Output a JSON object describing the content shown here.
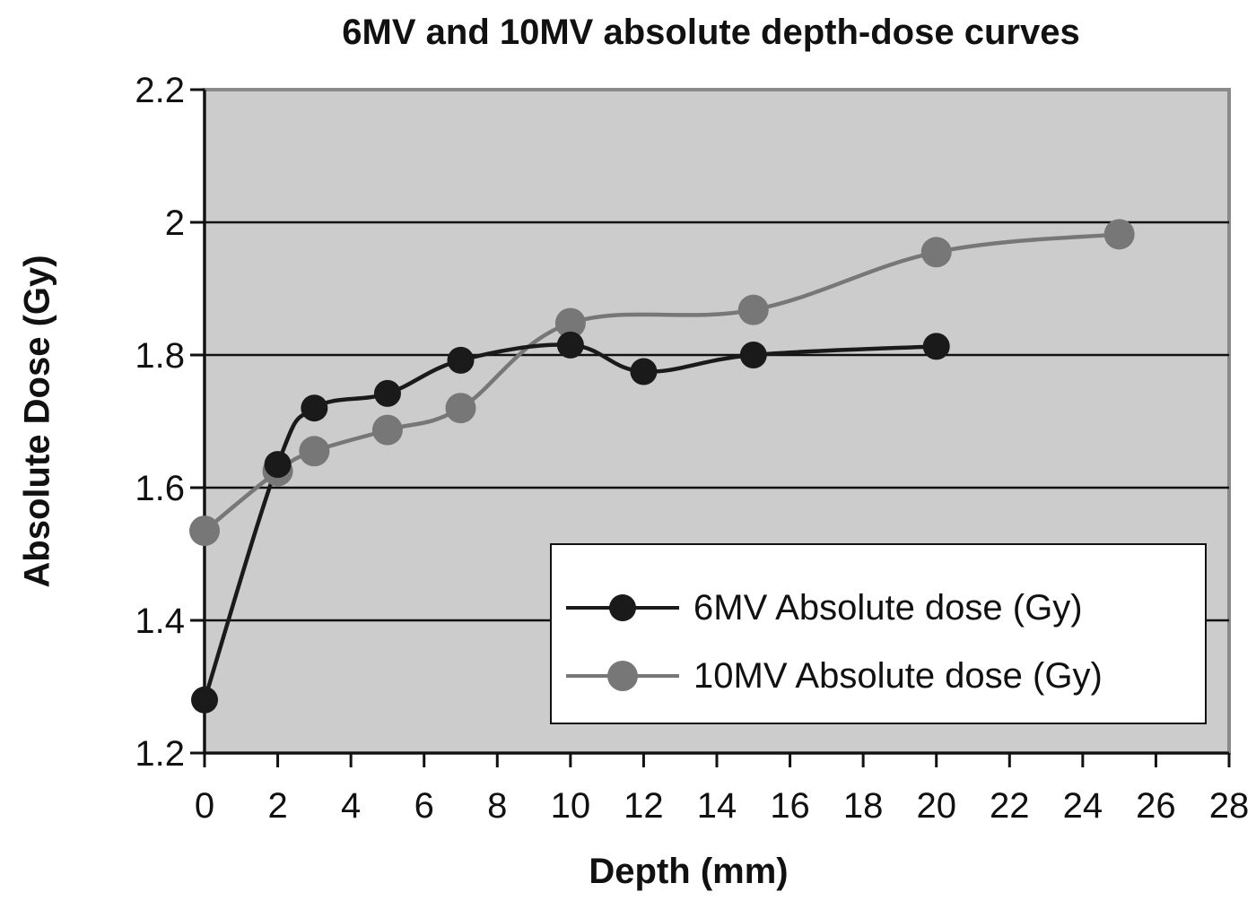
{
  "chart_data": {
    "type": "line",
    "title": "6MV and 10MV absolute depth-dose curves",
    "xlabel": "Depth (mm)",
    "ylabel": "Absolute Dose (Gy)",
    "xlim": [
      0,
      28
    ],
    "ylim": [
      1.2,
      2.2
    ],
    "xticks": [
      0,
      2,
      4,
      6,
      8,
      10,
      12,
      14,
      16,
      18,
      20,
      22,
      24,
      26,
      28
    ],
    "yticks": [
      1.2,
      1.4,
      1.6,
      1.8,
      2.0,
      2.2
    ],
    "ytick_labels": [
      "1.2",
      "1.4",
      "1.6",
      "1.8",
      "2",
      "2.2"
    ],
    "grid": "horizontal",
    "legend_position": "bottom-right",
    "plot_background": "#cccccc",
    "series": [
      {
        "name": "6MV Absolute dose (Gy)",
        "color": "#1a1a1a",
        "x": [
          0,
          2,
          3,
          5,
          7,
          10,
          12,
          15,
          20
        ],
        "y": [
          1.28,
          1.635,
          1.72,
          1.742,
          1.792,
          1.815,
          1.775,
          1.8,
          1.813
        ]
      },
      {
        "name": "10MV Absolute dose (Gy)",
        "color": "#777777",
        "x": [
          0,
          2,
          3,
          5,
          7,
          10,
          15,
          20,
          25
        ],
        "y": [
          1.535,
          1.625,
          1.655,
          1.687,
          1.72,
          1.848,
          1.868,
          1.955,
          1.982
        ]
      }
    ]
  }
}
